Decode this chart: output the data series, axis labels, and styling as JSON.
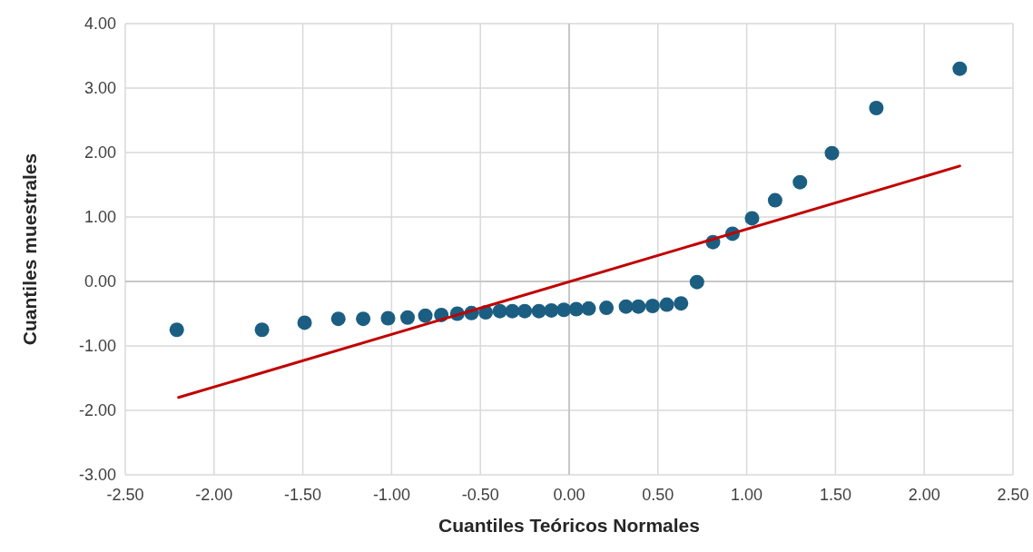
{
  "chart_data": {
    "type": "scatter",
    "xlabel": "Cuantiles Teóricos Normales",
    "ylabel": "Cuantiles muestrales",
    "xlim": [
      -2.5,
      2.5
    ],
    "ylim": [
      -3,
      4
    ],
    "xticks": [
      {
        "value": -2.5,
        "label": "-2.50"
      },
      {
        "value": -2,
        "label": "-2.00"
      },
      {
        "value": -1.5,
        "label": "-1.50"
      },
      {
        "value": -1,
        "label": "-1.00"
      },
      {
        "value": -0.5,
        "label": "-0.50"
      },
      {
        "value": 0,
        "label": "0.00"
      },
      {
        "value": 0.5,
        "label": "0.50"
      },
      {
        "value": 1,
        "label": "1.00"
      },
      {
        "value": 1.5,
        "label": "1.50"
      },
      {
        "value": 2,
        "label": "2.00"
      },
      {
        "value": 2.5,
        "label": "2.50"
      }
    ],
    "yticks": [
      {
        "value": -3,
        "label": "-3.00"
      },
      {
        "value": -2,
        "label": "-2.00"
      },
      {
        "value": -1,
        "label": "-1.00"
      },
      {
        "value": 0,
        "label": "0.00"
      },
      {
        "value": 1,
        "label": "1.00"
      },
      {
        "value": 2,
        "label": "2.00"
      },
      {
        "value": 3,
        "label": "3.00"
      },
      {
        "value": 4,
        "label": "4.00"
      }
    ],
    "grid": true,
    "series": [
      {
        "marker": "circle",
        "color": "#1b5e82",
        "x": [
          -2.21,
          -1.73,
          -1.49,
          -1.3,
          -1.16,
          -1.02,
          -0.91,
          -0.81,
          -0.72,
          -0.63,
          -0.55,
          -0.47,
          -0.39,
          -0.32,
          -0.25,
          -0.17,
          -0.1,
          -0.03,
          0.04,
          0.11,
          0.21,
          0.32,
          0.39,
          0.47,
          0.55,
          0.63,
          0.72,
          0.81,
          0.92,
          1.03,
          1.16,
          1.3,
          1.48,
          1.73,
          2.2
        ],
        "values": [
          -0.75,
          -0.75,
          -0.64,
          -0.58,
          -0.58,
          -0.57,
          -0.56,
          -0.53,
          -0.52,
          -0.5,
          -0.49,
          -0.48,
          -0.46,
          -0.46,
          -0.46,
          -0.46,
          -0.45,
          -0.44,
          -0.43,
          -0.42,
          -0.41,
          -0.39,
          -0.39,
          -0.38,
          -0.36,
          -0.34,
          -0.01,
          0.61,
          0.74,
          0.98,
          1.26,
          1.54,
          1.99,
          2.69,
          3.3
        ]
      },
      {
        "type": "line",
        "color": "#c00000",
        "x": [
          -2.2,
          2.2
        ],
        "values": [
          -1.8,
          1.79
        ]
      }
    ]
  }
}
